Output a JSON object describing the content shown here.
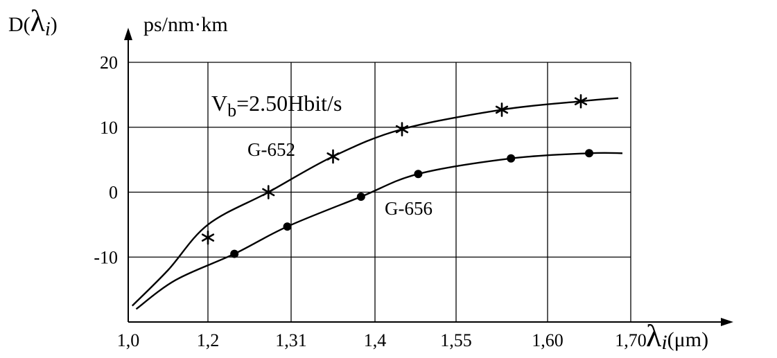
{
  "chart_data": {
    "type": "line",
    "title": "",
    "ylabel": {
      "main": "D(",
      "lambda": "λ",
      "sub": "i",
      "close": ")",
      "unit": "ps/nm·km"
    },
    "xlabel": {
      "lambda": "λ",
      "sub": "i",
      "unit": "(μm)"
    },
    "x_tick_labels": [
      "1,0",
      "1,2",
      "1,31",
      "1,4",
      "1,55",
      "1,60",
      "1,70"
    ],
    "y_ticks": [
      20,
      10,
      0,
      -10
    ],
    "y_tick_labels": [
      "20",
      "10",
      "0",
      "-10"
    ],
    "ylim": [
      -20,
      20
    ],
    "grid": true,
    "annotation": {
      "prefix": "V",
      "sub": "b",
      "rest": "=2.50Hbit/s"
    },
    "series": [
      {
        "name": "G-652",
        "marker": "asterisk",
        "x": [
          1.2,
          1.28,
          1.355,
          1.45,
          1.575,
          1.64
        ],
        "y": [
          -7,
          0,
          5.5,
          9.7,
          12.7,
          14
        ],
        "curve_x": [
          1.01,
          1.1,
          1.2,
          1.28,
          1.355,
          1.45,
          1.575,
          1.64,
          1.685
        ],
        "curve_y": [
          -17.5,
          -12,
          -5,
          0,
          5.5,
          9.7,
          12.7,
          14,
          14.5
        ]
      },
      {
        "name": "G-656",
        "marker": "dot",
        "x": [
          1.235,
          1.305,
          1.385,
          1.48,
          1.58,
          1.65
        ],
        "y": [
          -9.5,
          -5.3,
          -0.7,
          2.8,
          5.2,
          6
        ],
        "curve_x": [
          1.02,
          1.12,
          1.235,
          1.305,
          1.385,
          1.48,
          1.58,
          1.65,
          1.69
        ],
        "curve_y": [
          -18,
          -13.5,
          -9.5,
          -5.3,
          -0.7,
          2.8,
          5.2,
          6,
          6
        ]
      }
    ]
  }
}
